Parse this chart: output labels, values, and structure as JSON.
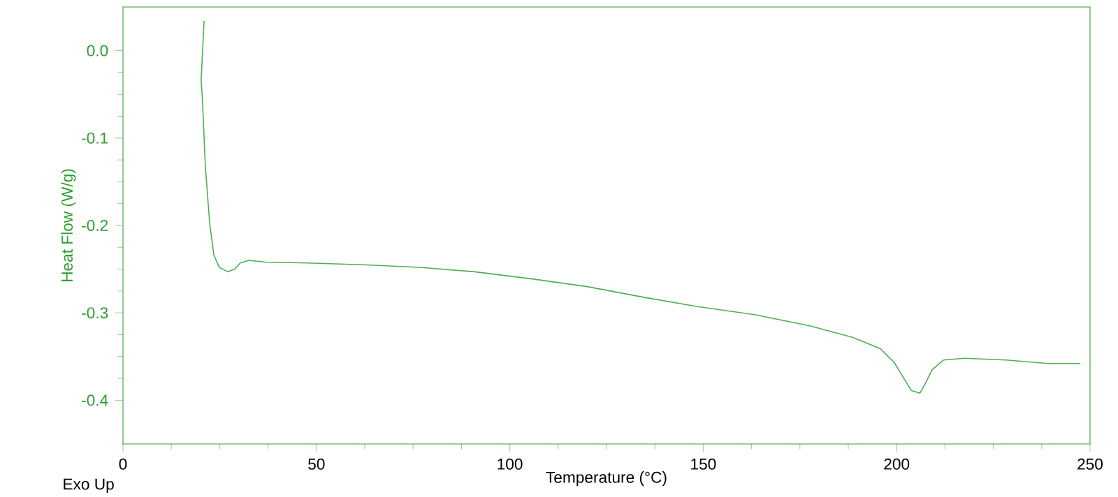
{
  "chart_data": {
    "type": "line",
    "xlabel": "Temperature (°C)",
    "ylabel": "Heat Flow (W/g)",
    "annotations": [
      "Exo Up"
    ],
    "color": "#4caf50",
    "x": [
      20.95,
      20.2,
      20.5,
      21.3,
      22.4,
      23.5,
      24.9,
      27.1,
      28.9,
      30.3,
      32.5,
      36.8,
      47.7,
      62,
      76.6,
      91,
      105.5,
      120,
      134.4,
      148.8,
      163.3,
      177.7,
      188.6,
      195.8,
      199.4,
      201.2,
      203.8,
      206,
      207.4,
      209.2,
      212.1,
      217.5,
      228.3,
      239.2,
      247.5
    ],
    "values": [
      0.034,
      -0.034,
      -0.053,
      -0.133,
      -0.197,
      -0.234,
      -0.248,
      -0.253,
      -0.25,
      -0.243,
      -0.24,
      -0.242,
      -0.243,
      -0.245,
      -0.248,
      -0.253,
      -0.261,
      -0.27,
      -0.282,
      -0.293,
      -0.302,
      -0.315,
      -0.328,
      -0.341,
      -0.357,
      -0.37,
      -0.389,
      -0.392,
      -0.381,
      -0.365,
      -0.354,
      -0.352,
      -0.354,
      -0.358,
      -0.358
    ],
    "xlim": [
      0,
      250
    ],
    "ylim": [
      -0.45,
      0.05
    ],
    "xticks": [
      0,
      50,
      100,
      150,
      200,
      250
    ],
    "yticks": [
      {
        "value": 0,
        "label": "0.0"
      },
      -0.1,
      -0.2,
      -0.3,
      -0.4
    ]
  }
}
